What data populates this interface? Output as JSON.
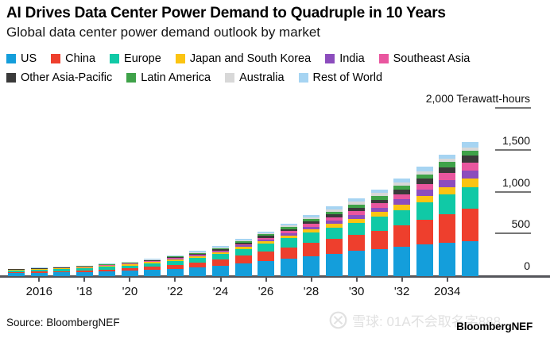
{
  "footer": {
    "source": "Source: BloombergNEF",
    "watermark": "雪球: 01A不会取名字888",
    "brand": "BloombergNEF"
  },
  "axis": {
    "y_ticks": [
      {
        "label": "2,000 Terawatt-hours",
        "value": 2000
      },
      {
        "label": "1,500",
        "value": 1500
      },
      {
        "label": "1,000",
        "value": 1000
      },
      {
        "label": "500",
        "value": 500
      },
      {
        "label": "0",
        "value": 0
      }
    ],
    "x_ticks": [
      {
        "label": "2016",
        "year": 2016
      },
      {
        "label": "'18",
        "year": 2018
      },
      {
        "label": "'20",
        "year": 2020
      },
      {
        "label": "'22",
        "year": 2022
      },
      {
        "label": "'24",
        "year": 2024
      },
      {
        "label": "'26",
        "year": 2026
      },
      {
        "label": "'28",
        "year": 2028
      },
      {
        "label": "'30",
        "year": 2030
      },
      {
        "label": "'32",
        "year": 2032
      },
      {
        "label": "2034",
        "year": 2034
      }
    ]
  },
  "legend_rows": [
    [
      0,
      1,
      2,
      3,
      4,
      5
    ],
    [
      6,
      7,
      8,
      9
    ]
  ],
  "chart_data": {
    "type": "bar",
    "stacked": true,
    "title": "AI Drives Data Center Power Demand to Quadruple in 10 Years",
    "subtitle": "Global data center power demand outlook by market",
    "ylabel": "Terawatt-hours",
    "xlabel": "",
    "ylim": [
      0,
      2000
    ],
    "y_tick_values": [
      0,
      500,
      1000,
      1500,
      2000
    ],
    "grid": false,
    "legend_position": "top",
    "x": [
      2015,
      2016,
      2017,
      2018,
      2019,
      2020,
      2021,
      2022,
      2023,
      2024,
      2025,
      2026,
      2027,
      2028,
      2029,
      2030,
      2031,
      2032,
      2033,
      2034,
      2035
    ],
    "series": [
      {
        "id": "us",
        "name": "US",
        "color": "#149edb",
        "values": [
          36,
          40,
          44,
          49,
          55,
          62,
          74,
          89,
          107,
          128,
          155,
          182,
          210,
          240,
          270,
          300,
          326,
          352,
          376,
          400,
          420
        ]
      },
      {
        "id": "china",
        "name": "China",
        "color": "#ee3f2d",
        "values": [
          13,
          15,
          17,
          19,
          24,
          30,
          37,
          45,
          56,
          70,
          90,
          112,
          133,
          155,
          174,
          190,
          216,
          252,
          296,
          344,
          390
        ]
      },
      {
        "id": "europe",
        "name": "Europe",
        "color": "#10c9a6",
        "values": [
          20,
          22,
          24,
          27,
          31,
          35,
          42,
          50,
          57,
          65,
          80,
          95,
          110,
          124,
          138,
          150,
          166,
          186,
          209,
          232,
          255
        ]
      },
      {
        "id": "japan-south-korea",
        "name": "Japan and South Korea",
        "color": "#fbc412",
        "values": [
          7,
          8,
          9,
          10,
          11,
          12,
          14,
          16,
          18,
          20,
          25,
          30,
          35,
          40,
          44,
          48,
          56,
          65,
          76,
          88,
          100
        ]
      },
      {
        "id": "india",
        "name": "India",
        "color": "#8c4dbd",
        "values": [
          2,
          2,
          3,
          3,
          4,
          5,
          6,
          8,
          10,
          13,
          17,
          22,
          27,
          33,
          40,
          46,
          55,
          65,
          76,
          88,
          100
        ]
      },
      {
        "id": "southeast-asia",
        "name": "Southeast Asia",
        "color": "#e9569f",
        "values": [
          2,
          3,
          3,
          4,
          4,
          5,
          6,
          7,
          9,
          11,
          15,
          19,
          24,
          30,
          36,
          42,
          50,
          60,
          71,
          83,
          95
        ]
      },
      {
        "id": "other-asia-pacific",
        "name": "Other Asia-Pacific",
        "color": "#3a3a3a",
        "values": [
          3,
          4,
          4,
          5,
          6,
          7,
          8,
          10,
          12,
          15,
          18,
          22,
          26,
          30,
          35,
          40,
          46,
          53,
          61,
          70,
          78
        ]
      },
      {
        "id": "latin-america",
        "name": "Latin America",
        "color": "#3fa249",
        "values": [
          2,
          2,
          3,
          3,
          5,
          6,
          8,
          9,
          11,
          13,
          16,
          20,
          24,
          29,
          35,
          42,
          46,
          50,
          54,
          58,
          62
        ]
      },
      {
        "id": "australia",
        "name": "Australia",
        "color": "#d8d8d8",
        "values": [
          3,
          3,
          3,
          4,
          5,
          6,
          7,
          8,
          9,
          10,
          12,
          14,
          17,
          20,
          25,
          30,
          32,
          34,
          36,
          38,
          40
        ]
      },
      {
        "id": "rest-of-world",
        "name": "Rest of World",
        "color": "#a6d4f2",
        "values": [
          2,
          3,
          3,
          4,
          5,
          7,
          8,
          9,
          11,
          13,
          16,
          20,
          24,
          29,
          35,
          42,
          46,
          50,
          53,
          56,
          60
        ]
      }
    ]
  }
}
